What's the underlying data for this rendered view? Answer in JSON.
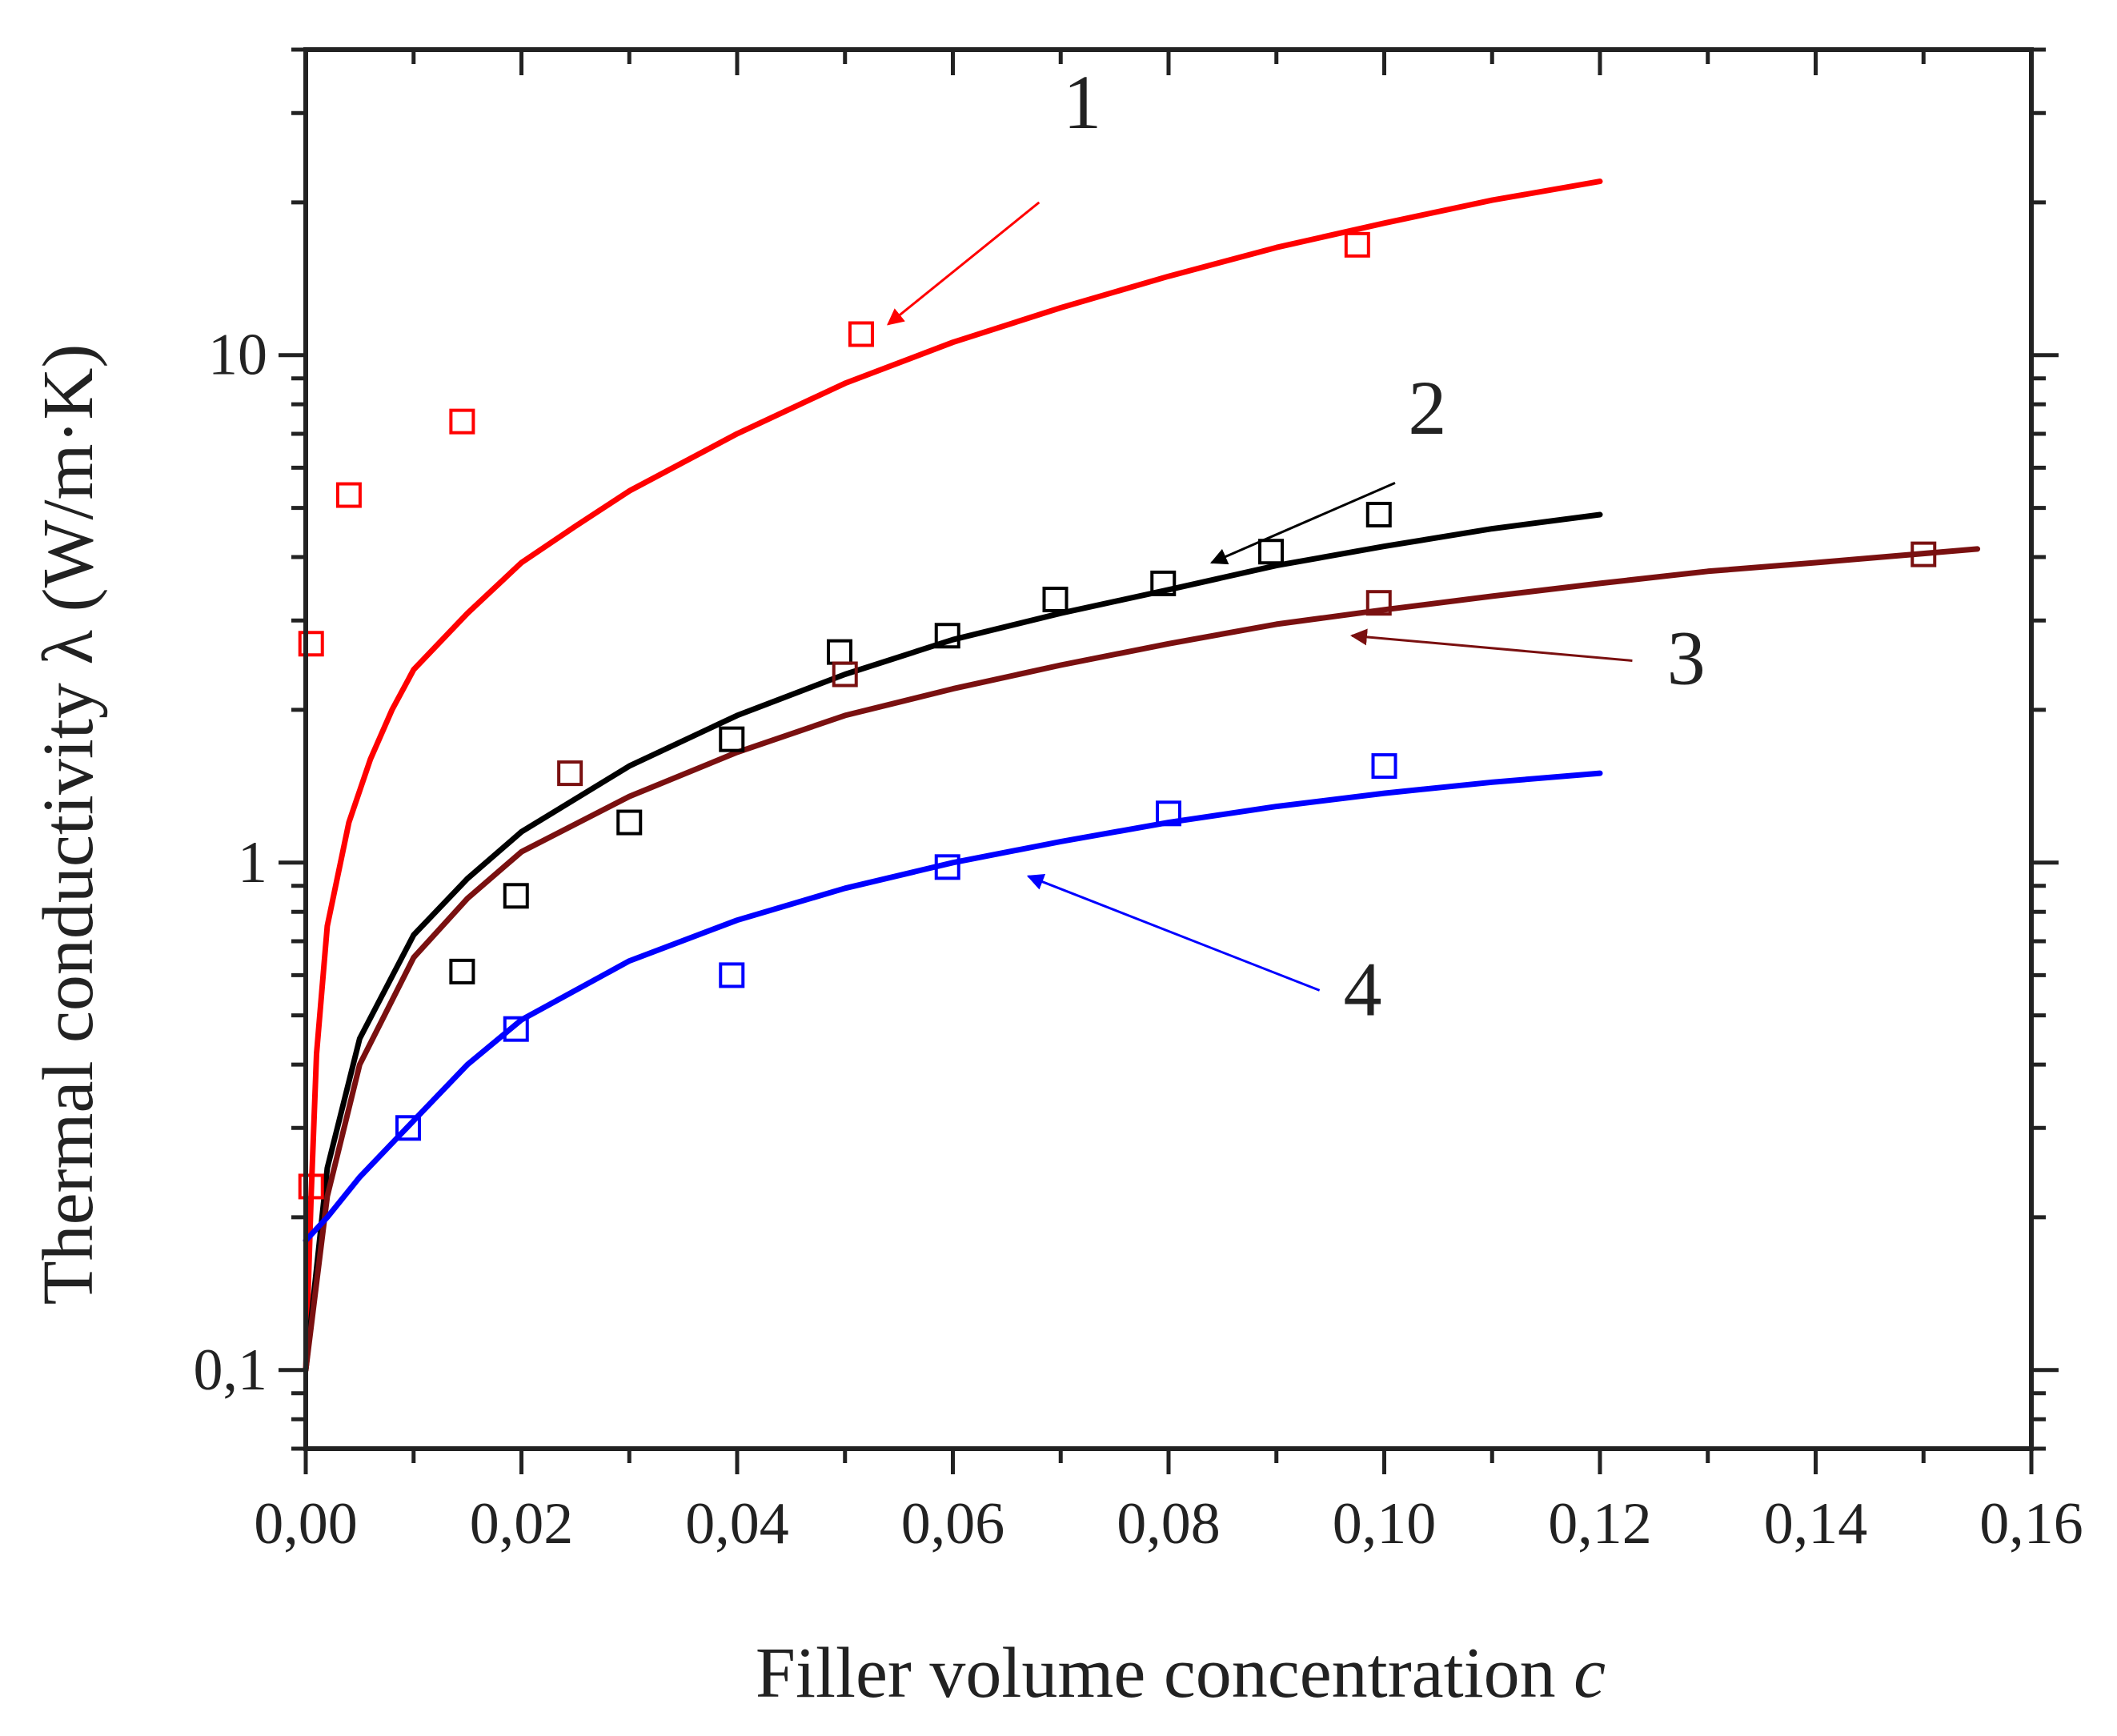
{
  "chart_data": {
    "type": "scatter",
    "title": "",
    "xlabel": "Filler volume concentration",
    "xlabel_symbol": "c",
    "ylabel": "Thermal conductivity λ (W/m·K)",
    "xscale": "linear",
    "yscale": "log",
    "xlim": [
      0.0,
      0.16
    ],
    "ylim": [
      0.07,
      40
    ],
    "x_ticks": [
      0.0,
      0.02,
      0.04,
      0.06,
      0.08,
      0.1,
      0.12,
      0.14,
      0.16
    ],
    "x_tick_labels": [
      "0,00",
      "0,02",
      "0,04",
      "0,06",
      "0,08",
      "0,10",
      "0,12",
      "0,14",
      "0,16"
    ],
    "y_ticks": [
      0.1,
      1,
      10
    ],
    "y_tick_labels": [
      "0,1",
      "1",
      "10"
    ],
    "series": [
      {
        "name": "1",
        "color": "#ff0000",
        "line": {
          "x": [
            0.0,
            0.0005,
            0.001,
            0.002,
            0.004,
            0.006,
            0.008,
            0.01,
            0.015,
            0.02,
            0.025,
            0.03,
            0.04,
            0.05,
            0.06,
            0.07,
            0.08,
            0.09,
            0.1,
            0.11,
            0.12
          ],
          "y": [
            0.1,
            0.22,
            0.42,
            0.75,
            1.2,
            1.6,
            2.0,
            2.4,
            3.1,
            3.9,
            4.6,
            5.4,
            7.0,
            8.8,
            10.6,
            12.4,
            14.3,
            16.3,
            18.2,
            20.2,
            22.0
          ]
        },
        "points": {
          "x": [
            0.0005,
            0.0005,
            0.004,
            0.0145,
            0.0515,
            0.0975
          ],
          "y": [
            0.23,
            2.7,
            5.3,
            7.4,
            11.0,
            16.5
          ]
        },
        "label_position": "top"
      },
      {
        "name": "2",
        "color": "#000000",
        "line": {
          "x": [
            0.0,
            0.002,
            0.005,
            0.01,
            0.015,
            0.02,
            0.03,
            0.04,
            0.05,
            0.06,
            0.07,
            0.08,
            0.09,
            0.1,
            0.11,
            0.12
          ],
          "y": [
            0.1,
            0.25,
            0.45,
            0.72,
            0.93,
            1.15,
            1.55,
            1.95,
            2.35,
            2.75,
            3.1,
            3.45,
            3.85,
            4.2,
            4.55,
            4.85
          ]
        },
        "points": {
          "x": [
            0.0145,
            0.0195,
            0.03,
            0.0395,
            0.0495,
            0.0595,
            0.0695,
            0.0795,
            0.0895,
            0.0995
          ],
          "y": [
            0.61,
            0.86,
            1.2,
            1.75,
            2.6,
            2.8,
            3.3,
            3.55,
            4.1,
            4.85
          ]
        },
        "label_position": "upper-right"
      },
      {
        "name": "3",
        "color": "#7a1010",
        "line": {
          "x": [
            0.0,
            0.002,
            0.005,
            0.01,
            0.015,
            0.02,
            0.03,
            0.04,
            0.05,
            0.06,
            0.07,
            0.08,
            0.09,
            0.1,
            0.11,
            0.12,
            0.13,
            0.14,
            0.155
          ],
          "y": [
            0.1,
            0.22,
            0.4,
            0.65,
            0.85,
            1.05,
            1.35,
            1.65,
            1.95,
            2.2,
            2.45,
            2.7,
            2.95,
            3.15,
            3.35,
            3.55,
            3.75,
            3.9,
            4.15
          ]
        },
        "points": {
          "x": [
            0.0245,
            0.05,
            0.0995,
            0.15
          ],
          "y": [
            1.5,
            2.35,
            3.25,
            4.05
          ]
        },
        "label_position": "right"
      },
      {
        "name": "4",
        "color": "#0000ff",
        "line": {
          "x": [
            0.0,
            0.002,
            0.005,
            0.01,
            0.015,
            0.02,
            0.03,
            0.04,
            0.05,
            0.06,
            0.07,
            0.08,
            0.09,
            0.1,
            0.11,
            0.12
          ],
          "y": [
            0.18,
            0.2,
            0.24,
            0.31,
            0.4,
            0.49,
            0.64,
            0.77,
            0.89,
            1.0,
            1.1,
            1.2,
            1.29,
            1.37,
            1.44,
            1.5
          ]
        },
        "points": {
          "x": [
            0.0095,
            0.0195,
            0.0395,
            0.0595,
            0.08,
            0.1
          ],
          "y": [
            0.3,
            0.47,
            0.6,
            0.98,
            1.25,
            1.55
          ]
        },
        "label_position": "lower-right"
      }
    ],
    "annotations": [
      {
        "text": "1",
        "color": "#ff0000",
        "text_x": 0.072,
        "text_y": 28.0,
        "arrow_from_x": 0.068,
        "arrow_from_y": 20.0,
        "arrow_to_x": 0.054,
        "arrow_to_y": 11.5
      },
      {
        "text": "2",
        "color": "#000000",
        "text_x": 0.104,
        "text_y": 7.0,
        "arrow_from_x": 0.101,
        "arrow_from_y": 5.6,
        "arrow_to_x": 0.084,
        "arrow_to_y": 3.9
      },
      {
        "text": "3",
        "color": "#7a1010",
        "text_x": 0.128,
        "text_y": 2.25,
        "arrow_from_x": 0.123,
        "arrow_from_y": 2.5,
        "arrow_to_x": 0.097,
        "arrow_to_y": 2.8
      },
      {
        "text": "4",
        "color": "#0000ff",
        "text_x": 0.098,
        "text_y": 0.5,
        "arrow_from_x": 0.094,
        "arrow_from_y": 0.56,
        "arrow_to_x": 0.067,
        "arrow_to_y": 0.94
      }
    ]
  }
}
